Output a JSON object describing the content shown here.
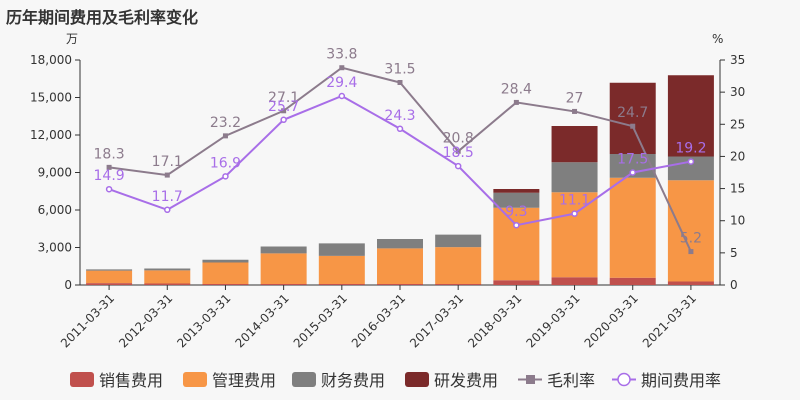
{
  "page_title": "历年期间费用及毛利率变化",
  "chart_data": {
    "type": "bar",
    "title": "历年期间费用及毛利率变化",
    "y_left_unit": "万",
    "y_right_unit": "%",
    "y_left_ticks": [
      "0",
      "3,000",
      "6,000",
      "9,000",
      "12,000",
      "15,000",
      "18,000"
    ],
    "y_right_ticks": [
      "0",
      "5",
      "10",
      "15",
      "20",
      "25",
      "30",
      "35"
    ],
    "ylim_left": [
      0,
      18000
    ],
    "ylim_right": [
      0,
      35
    ],
    "categories": [
      "2011-03-31",
      "2012-03-31",
      "2013-03-31",
      "2014-03-31",
      "2015-03-31",
      "2016-03-31",
      "2017-03-31",
      "2018-03-31",
      "2019-03-31",
      "2020-03-31",
      "2021-03-31"
    ],
    "stacked_series": [
      {
        "name": "销售费用",
        "color": "#c0504d",
        "values": [
          150,
          120,
          80,
          80,
          80,
          80,
          80,
          380,
          620,
          580,
          280
        ]
      },
      {
        "name": "管理费用",
        "color": "#f79646",
        "values": [
          1000,
          1050,
          1720,
          2450,
          2250,
          2850,
          2950,
          5800,
          6800,
          8000,
          8100
        ]
      },
      {
        "name": "财务费用",
        "color": "#7f7f7f",
        "values": [
          100,
          150,
          220,
          550,
          1000,
          750,
          1000,
          1200,
          2400,
          1900,
          1900
        ]
      },
      {
        "name": "研发费用",
        "color": "#7b2a2a",
        "values": [
          0,
          0,
          0,
          0,
          0,
          0,
          0,
          300,
          2900,
          5700,
          6500
        ]
      }
    ],
    "line_series": [
      {
        "name": "毛利率",
        "color": "#8c7b8c",
        "values": [
          18.3,
          17.1,
          23.2,
          27.1,
          33.8,
          31.5,
          20.8,
          28.4,
          27.0,
          24.7,
          5.2
        ],
        "labels": [
          "18.3",
          "17.1",
          "23.2",
          "27.1",
          "33.8",
          "31.5",
          "20.8",
          "28.4",
          "27",
          "24.7",
          "5.2"
        ]
      },
      {
        "name": "期间费用率",
        "color": "#a86ee8",
        "values": [
          14.9,
          11.7,
          16.9,
          25.7,
          29.4,
          24.3,
          18.5,
          9.3,
          11.1,
          17.5,
          19.2
        ],
        "labels": [
          "14.9",
          "11.7",
          "16.9",
          "25.7",
          "29.4",
          "24.3",
          "18.5",
          "9.3",
          "11.1",
          "17.5",
          "19.2"
        ]
      }
    ],
    "legend": [
      "销售费用",
      "管理费用",
      "财务费用",
      "研发费用",
      "毛利率",
      "期间费用率"
    ],
    "legend_position": "bottom",
    "grid": false
  }
}
